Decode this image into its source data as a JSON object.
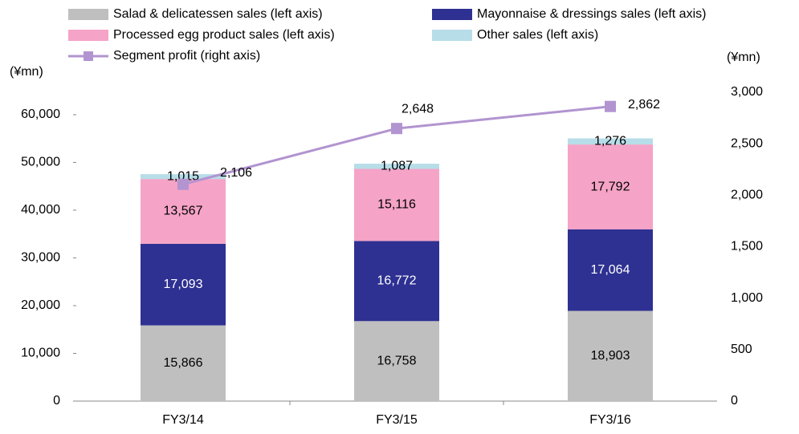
{
  "chart_data": {
    "type": "bar",
    "stacked": true,
    "y_label": "(¥mn)",
    "y2_label": "(¥mn)",
    "categories": [
      "FY3/14",
      "FY3/15",
      "FY3/16"
    ],
    "series": [
      {
        "name": "Salad & delicatessen sales (left axis)",
        "color": "#bfbfbf",
        "values": [
          15866,
          16758,
          18903
        ],
        "value_labels": [
          "15,866",
          "16,758",
          "18,903"
        ]
      },
      {
        "name": "Mayonnaise & dressings sales (left axis)",
        "color": "#2e3192",
        "values": [
          17093,
          16772,
          17064
        ],
        "value_labels": [
          "17,093",
          "16,772",
          "17,064"
        ]
      },
      {
        "name": "Processed egg product sales (left axis)",
        "color": "#f5a3c7",
        "values": [
          13567,
          15116,
          17792
        ],
        "value_labels": [
          "13,567",
          "15,116",
          "17,792"
        ]
      },
      {
        "name": "Other sales (left axis)",
        "color": "#b7dde8",
        "values": [
          1015,
          1087,
          1276
        ],
        "value_labels": [
          "1,015",
          "1,087",
          "1,276"
        ]
      },
      {
        "name": "Segment profit (right axis)",
        "color": "#b294d0",
        "type": "line",
        "axis": "y2",
        "values": [
          2106,
          2648,
          2862
        ],
        "value_labels": [
          "2,106",
          "2,648",
          "2,862"
        ]
      }
    ],
    "ylim": [
      0,
      64700
    ],
    "yticks": [
      0,
      {
        "value": 10000,
        "label": "10,000"
      },
      {
        "value": 20000,
        "label": "20,000"
      },
      {
        "value": 30000,
        "label": "30,000"
      },
      {
        "value": 40000,
        "label": "40,000"
      },
      {
        "value": 50000,
        "label": "50,000"
      },
      {
        "value": 60000,
        "label": "60,000"
      }
    ],
    "y2lim": [
      0,
      3000
    ],
    "y2ticks": [
      0,
      500,
      {
        "value": 1000,
        "label": "1,000"
      },
      {
        "value": 1500,
        "label": "1,500"
      },
      {
        "value": 2000,
        "label": "2,000"
      },
      {
        "value": 2500,
        "label": "2,500"
      },
      {
        "value": 3000,
        "label": "3,000"
      }
    ],
    "grid": false
  }
}
